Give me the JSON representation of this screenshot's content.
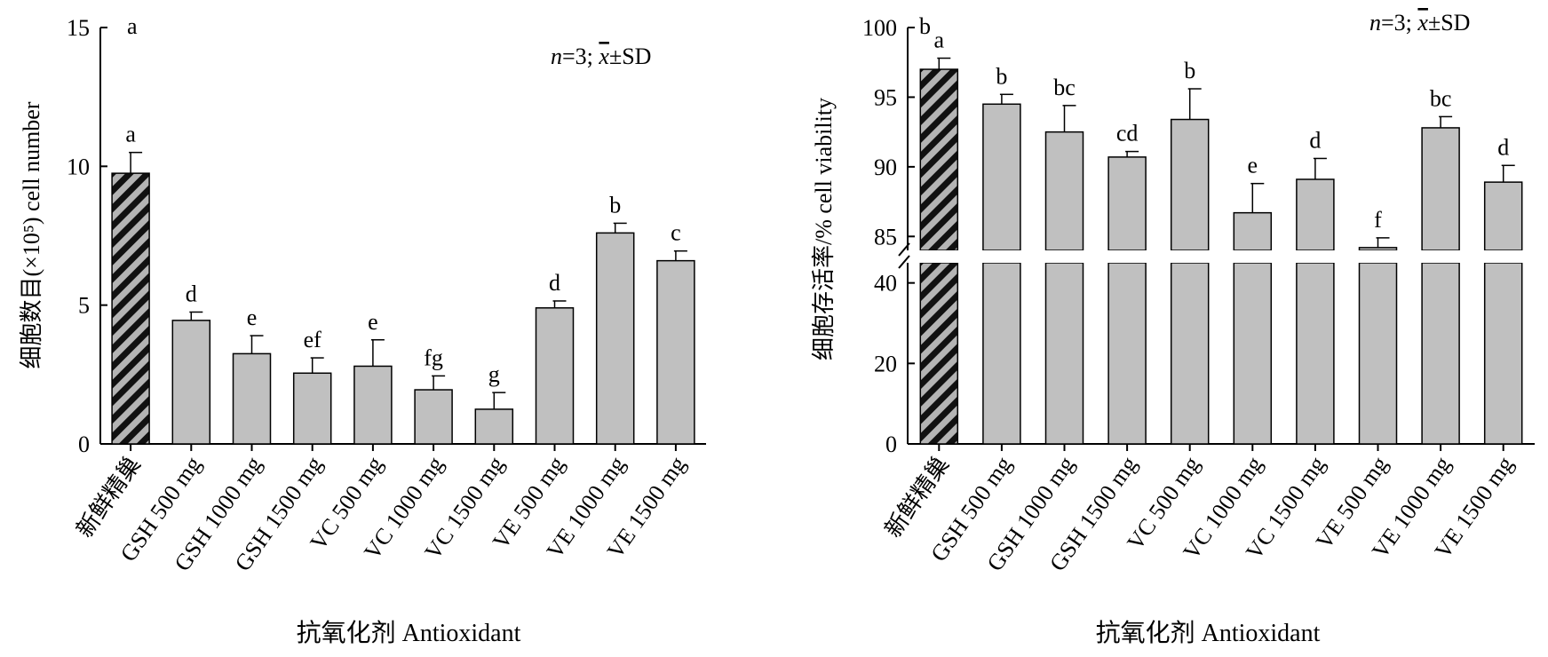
{
  "chart_data": [
    {
      "type": "bar",
      "panel_letter": "a",
      "annotation": {
        "n_prefix": "n",
        "n_value": "=3;",
        "stat_mean": "x",
        "stat_rest": "±SD"
      },
      "ylabel": "细胞数目(×10⁵) cell number",
      "xlabel": "抗氧化剂 Antioxidant",
      "categories": [
        "新鲜精巢",
        "GSH 500 mg",
        "GSH 1000 mg",
        "GSH 1500 mg",
        "VC 500 mg",
        "VC 1000 mg",
        "VC 1500 mg",
        "VE 500 mg",
        "VE 1000 mg",
        "VE 1500 mg"
      ],
      "values": [
        9.75,
        4.45,
        3.25,
        2.55,
        2.8,
        1.95,
        1.25,
        4.9,
        7.6,
        6.6
      ],
      "errors": [
        0.75,
        0.3,
        0.65,
        0.55,
        0.95,
        0.5,
        0.6,
        0.25,
        0.35,
        0.35
      ],
      "letters": [
        "a",
        "d",
        "e",
        "ef",
        "e",
        "fg",
        "g",
        "d",
        "b",
        "c"
      ],
      "ylim": [
        0,
        15
      ],
      "yticks": [
        0,
        5,
        10,
        15
      ],
      "ytick_labels": [
        "0",
        "5",
        "10",
        "15"
      ],
      "hatched_first_bar": true,
      "colors": {
        "bar": "#c0c0c0",
        "hatch_light": "#b4b4b4",
        "hatch_dark": "#111111"
      }
    },
    {
      "type": "bar",
      "panel_letter": "b",
      "broken_axis": true,
      "annotation": {
        "n_prefix": "n",
        "n_value": "=3;",
        "stat_mean": "x",
        "stat_rest": "±SD"
      },
      "ylabel": "细胞存活率/% cell viability",
      "xlabel": "抗氧化剂 Antioxidant",
      "categories": [
        "新鲜精巢",
        "GSH 500 mg",
        "GSH 1000 mg",
        "GSH 1500 mg",
        "VC 500 mg",
        "VC 1000 mg",
        "VC 1500 mg",
        "VE 500 mg",
        "VE 1000 mg",
        "VE 1500 mg"
      ],
      "values": [
        97.0,
        94.5,
        92.5,
        90.7,
        93.4,
        86.7,
        89.1,
        84.2,
        92.8,
        88.9
      ],
      "errors": [
        0.8,
        0.7,
        1.9,
        0.4,
        2.2,
        2.1,
        1.5,
        0.7,
        0.8,
        1.2
      ],
      "letters": [
        "a",
        "b",
        "bc",
        "cd",
        "b",
        "e",
        "d",
        "f",
        "bc",
        "d"
      ],
      "lower_ylim": [
        0,
        45
      ],
      "lower_yticks": [
        0,
        20,
        40
      ],
      "lower_ytick_labels": [
        "0",
        "20",
        "40"
      ],
      "upper_ylim": [
        84,
        100
      ],
      "upper_yticks": [
        85,
        90,
        95,
        100
      ],
      "upper_ytick_labels": [
        "85",
        "90",
        "95",
        "100"
      ],
      "hatched_first_bar": true,
      "colors": {
        "bar": "#c0c0c0",
        "hatch_light": "#b4b4b4",
        "hatch_dark": "#111111"
      }
    }
  ]
}
